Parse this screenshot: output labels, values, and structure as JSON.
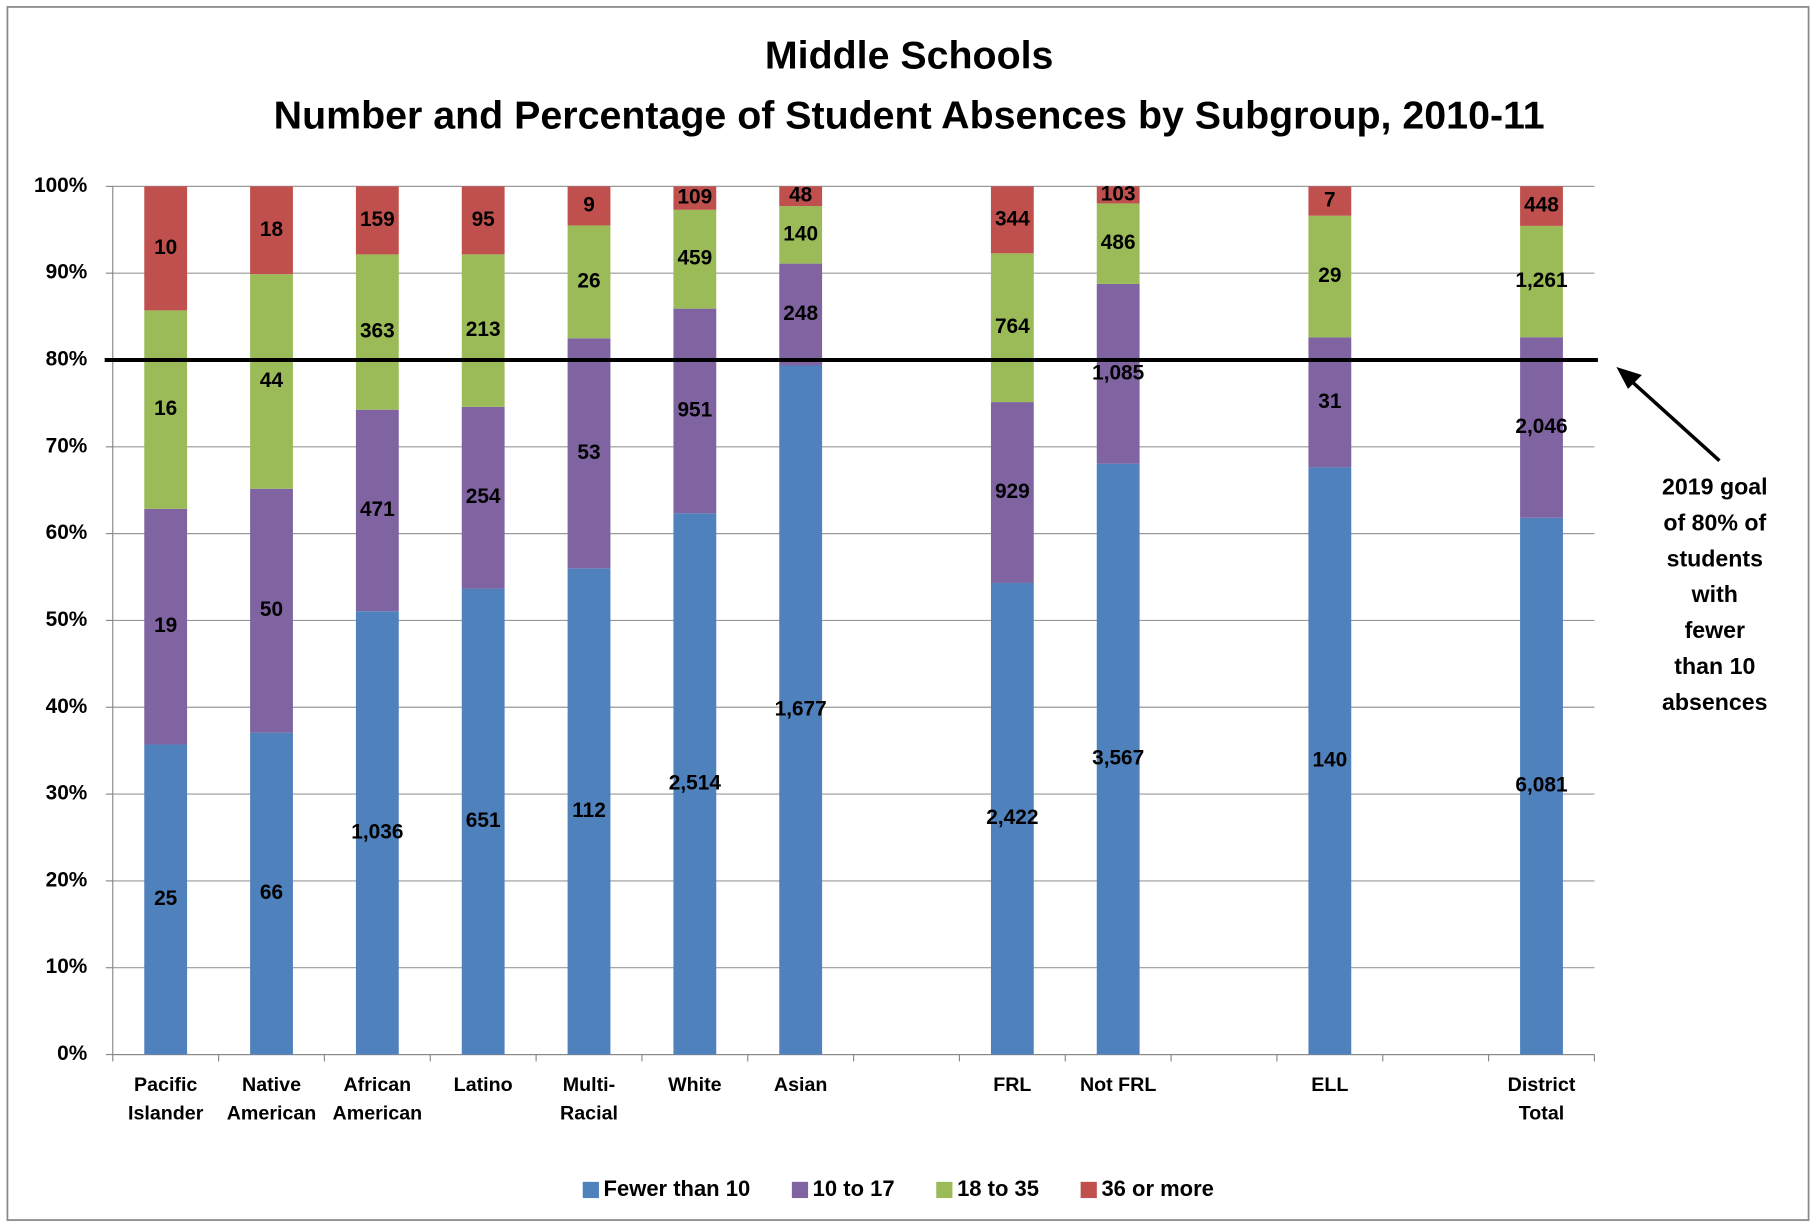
{
  "chart_data": {
    "type": "bar",
    "stacking": "percent",
    "title": "Middle Schools",
    "subtitle": "Number and Percentage of Student Absences by Subgroup, 2010-11",
    "categories": [
      "Pacific\nIslander",
      "Native\nAmerican",
      "African\nAmerican",
      "Latino",
      "Multi-\nRacial",
      "White",
      "Asian",
      null,
      "FRL",
      "Not FRL",
      null,
      "ELL",
      null,
      "District\nTotal"
    ],
    "series": [
      {
        "name": "Fewer than 10",
        "color": "#4f81bd",
        "values": [
          25,
          66,
          1036,
          651,
          112,
          2514,
          1677,
          null,
          2422,
          3567,
          null,
          140,
          null,
          6081
        ],
        "value_labels": [
          "25",
          "66",
          "1,036",
          "651",
          "112",
          "2,514",
          "1,677",
          null,
          "2,422",
          "3,567",
          null,
          "140",
          null,
          "6,081"
        ]
      },
      {
        "name": "10 to 17",
        "color": "#8064a2",
        "values": [
          19,
          50,
          471,
          254,
          53,
          951,
          248,
          null,
          929,
          1085,
          null,
          31,
          null,
          2046
        ],
        "value_labels": [
          "19",
          "50",
          "471",
          "254",
          "53",
          "951",
          "248",
          null,
          "929",
          "1,085",
          null,
          "31",
          null,
          "2,046"
        ]
      },
      {
        "name": "18 to 35",
        "color": "#9bbb59",
        "values": [
          16,
          44,
          363,
          213,
          26,
          459,
          140,
          null,
          764,
          486,
          null,
          29,
          null,
          1261
        ],
        "value_labels": [
          "16",
          "44",
          "363",
          "213",
          "26",
          "459",
          "140",
          null,
          "764",
          "486",
          null,
          "29",
          null,
          "1,261"
        ]
      },
      {
        "name": "36 or more",
        "color": "#c0504d",
        "values": [
          10,
          18,
          159,
          95,
          9,
          109,
          48,
          null,
          344,
          103,
          null,
          7,
          null,
          448
        ],
        "value_labels": [
          "10",
          "18",
          "159",
          "95",
          "9",
          "109",
          "48",
          null,
          "344",
          "103",
          null,
          "7",
          null,
          "448"
        ]
      }
    ],
    "ylim": [
      0,
      100
    ],
    "yticks": [
      {
        "value": 0,
        "label": "0%"
      },
      {
        "value": 10,
        "label": "10%"
      },
      {
        "value": 20,
        "label": "20%"
      },
      {
        "value": 30,
        "label": "30%"
      },
      {
        "value": 40,
        "label": "40%"
      },
      {
        "value": 50,
        "label": "50%"
      },
      {
        "value": 60,
        "label": "60%"
      },
      {
        "value": 70,
        "label": "70%"
      },
      {
        "value": 80,
        "label": "80%"
      },
      {
        "value": 90,
        "label": "90%"
      },
      {
        "value": 100,
        "label": "100%"
      }
    ],
    "grid": true,
    "legend": "bottom",
    "goal_line": {
      "value": 80,
      "label": "2019 goal\nof 80% of\nstudents\nwith\nfewer\nthan 10\nabsences",
      "color": "#000000"
    }
  }
}
